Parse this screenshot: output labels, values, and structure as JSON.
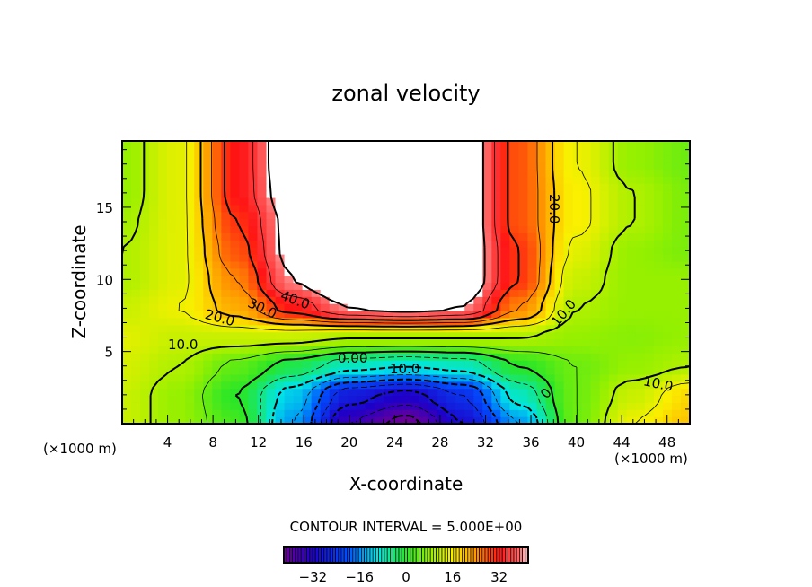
{
  "chart_data": {
    "type": "heatmap",
    "title": "zonal velocity",
    "xlabel": "X-coordinate",
    "ylabel": "Z-coordinate",
    "x_unit_left": "(×1000 m)",
    "x_unit_right": "(×1000 m)",
    "xlim": [
      0,
      50
    ],
    "ylim": [
      0,
      19.6
    ],
    "x_ticks": [
      "4",
      "8",
      "12",
      "16",
      "20",
      "24",
      "28",
      "32",
      "36",
      "40",
      "44",
      "48"
    ],
    "y_ticks": [
      "5",
      "10",
      "15"
    ],
    "contour_interval_text": "CONTOUR INTERVAL = 5.000E+00",
    "contour_interval": 5,
    "contour_labels": [
      "40.0",
      "30.0",
      "20.0",
      "10.0",
      "0.00",
      "10.0",
      "20.0",
      "10.0",
      "0",
      "10.0"
    ],
    "colorbar": {
      "range": [
        -42,
        42
      ],
      "ticks": [
        "-32",
        "-16",
        "0",
        "16",
        "32"
      ],
      "tick_values": [
        -32,
        -16,
        0,
        16,
        32
      ]
    },
    "grid_x": [
      0,
      5,
      10,
      15,
      20,
      25,
      30,
      35,
      40,
      45,
      50
    ],
    "grid_z": [
      0,
      2,
      4,
      6,
      8,
      10,
      12,
      14,
      16,
      18,
      20
    ],
    "values": [
      [
        12,
        8,
        2,
        -15,
        -35,
        -42,
        -30,
        -15,
        5,
        15,
        20
      ],
      [
        12,
        8,
        0,
        -12,
        -28,
        -32,
        -25,
        -8,
        5,
        12,
        18
      ],
      [
        13,
        10,
        4,
        -2,
        -8,
        -10,
        -8,
        0,
        5,
        8,
        10
      ],
      [
        14,
        12,
        12,
        12,
        10,
        10,
        10,
        10,
        8,
        7,
        8
      ],
      [
        12,
        15,
        22,
        32,
        40,
        42,
        40,
        25,
        10,
        8,
        8
      ],
      [
        10,
        14,
        25,
        40,
        50,
        50,
        45,
        30,
        12,
        8,
        8
      ],
      [
        10,
        14,
        28,
        42,
        50,
        50,
        45,
        30,
        14,
        8,
        6
      ],
      [
        9,
        14,
        30,
        42,
        50,
        50,
        45,
        28,
        16,
        10,
        6
      ],
      [
        8,
        14,
        32,
        44,
        50,
        50,
        45,
        28,
        16,
        10,
        6
      ],
      [
        8,
        14,
        32,
        45,
        50,
        50,
        45,
        28,
        15,
        8,
        5
      ],
      [
        8,
        14,
        32,
        45,
        50,
        50,
        45,
        28,
        15,
        8,
        5
      ]
    ],
    "above_range_color": "#ffffff"
  }
}
